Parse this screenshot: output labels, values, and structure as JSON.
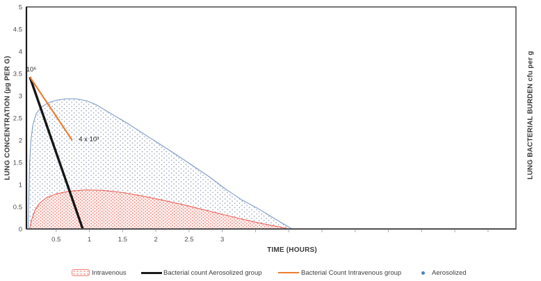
{
  "chart_data": {
    "type": "area",
    "title": "",
    "xlabel": "TIME (HOURS)",
    "ylabel_left": "LUNG CONCENTRATION (µg PER G)",
    "ylabel_right": "LUNG BACTERIAL BURDEN cfu per g",
    "xlim": [
      0,
      7.42
    ],
    "ylim": [
      0,
      5
    ],
    "grid": false,
    "x_ticks": {
      "labeled_values": [
        0.5,
        1,
        1.5,
        2,
        2.5,
        3
      ],
      "labels": [
        "0.5",
        "1",
        "1.5",
        "2",
        "2.5",
        "3"
      ],
      "minor_step": 0.5,
      "minor_extent": 7.4
    },
    "y_ticks": {
      "values": [
        0,
        0.5,
        1,
        1.5,
        2,
        2.5,
        3,
        3.5,
        4,
        4.5,
        5
      ],
      "labels": [
        "0",
        "0.5",
        "1",
        "1.5",
        "2",
        "2.5",
        "3",
        "3.5",
        "4",
        "4.5",
        "5"
      ]
    },
    "series": [
      {
        "name": "Aerosolized",
        "kind": "area",
        "line_color": "#7d9bc8",
        "fill_pattern": "blue-dots",
        "points": [
          [
            0.08,
            0
          ],
          [
            0.09,
            0.8
          ],
          [
            0.1,
            1.5
          ],
          [
            0.12,
            2.0
          ],
          [
            0.15,
            2.35
          ],
          [
            0.2,
            2.6
          ],
          [
            0.28,
            2.75
          ],
          [
            0.38,
            2.84
          ],
          [
            0.5,
            2.9
          ],
          [
            0.65,
            2.93
          ],
          [
            0.8,
            2.93
          ],
          [
            0.95,
            2.89
          ],
          [
            1.1,
            2.8
          ],
          [
            1.3,
            2.62
          ],
          [
            1.55,
            2.4
          ],
          [
            1.8,
            2.16
          ],
          [
            2.05,
            1.92
          ],
          [
            2.3,
            1.68
          ],
          [
            2.55,
            1.43
          ],
          [
            2.8,
            1.18
          ],
          [
            3.05,
            0.9
          ],
          [
            3.3,
            0.65
          ],
          [
            3.55,
            0.45
          ],
          [
            3.8,
            0.22
          ],
          [
            4.05,
            0
          ]
        ]
      },
      {
        "name": "Intravenous",
        "kind": "area",
        "line_color": "#ea6159",
        "fill_pattern": "red-dots",
        "points": [
          [
            0.1,
            0
          ],
          [
            0.13,
            0.2
          ],
          [
            0.18,
            0.42
          ],
          [
            0.25,
            0.58
          ],
          [
            0.35,
            0.7
          ],
          [
            0.5,
            0.79
          ],
          [
            0.7,
            0.85
          ],
          [
            0.95,
            0.88
          ],
          [
            1.2,
            0.87
          ],
          [
            1.5,
            0.82
          ],
          [
            1.8,
            0.74
          ],
          [
            2.1,
            0.65
          ],
          [
            2.4,
            0.55
          ],
          [
            2.7,
            0.44
          ],
          [
            3.0,
            0.33
          ],
          [
            3.3,
            0.22
          ],
          [
            3.6,
            0.12
          ],
          [
            3.85,
            0.05
          ],
          [
            4.02,
            0
          ]
        ]
      },
      {
        "name": "Bacterial count Aerosolized group",
        "kind": "line",
        "line_color": "#161616",
        "line_width": 3.4,
        "points": [
          [
            0.105,
            3.42
          ],
          [
            0.9,
            0
          ]
        ]
      },
      {
        "name": "Bacterial Count Intravenous group",
        "kind": "line",
        "line_color": "#ED7D31",
        "line_width": 2.2,
        "points": [
          [
            0.105,
            3.42
          ],
          [
            0.74,
            2.0
          ]
        ]
      }
    ],
    "annotations": [
      {
        "text": "10⁶",
        "x": 0.05,
        "y": 3.55,
        "anchor": "start"
      },
      {
        "text": "4 x 10³",
        "x": 0.84,
        "y": 1.98,
        "anchor": "start"
      }
    ],
    "legend_position": "bottom"
  },
  "legend": {
    "items": [
      {
        "label": "Intravenous",
        "swatch": "red-dotted-area"
      },
      {
        "label": "Bacterial count Aerosolized group",
        "swatch": "black-line"
      },
      {
        "label": "Bacterial Count Intravenous group",
        "swatch": "orange-line"
      },
      {
        "label": "Aerosolized",
        "swatch": "blue-dot"
      }
    ]
  },
  "colors": {
    "aerosolized_line": "#7d9bc8",
    "aerosolized_dot": "#9aa6bc",
    "intravenous_line": "#ea6159",
    "intravenous_dot": "#f2897f",
    "bacterial_aerosolized": "#161616",
    "bacterial_intravenous": "#ED7D31",
    "axis": "#333333",
    "tick_text": "#4d4d4d"
  }
}
